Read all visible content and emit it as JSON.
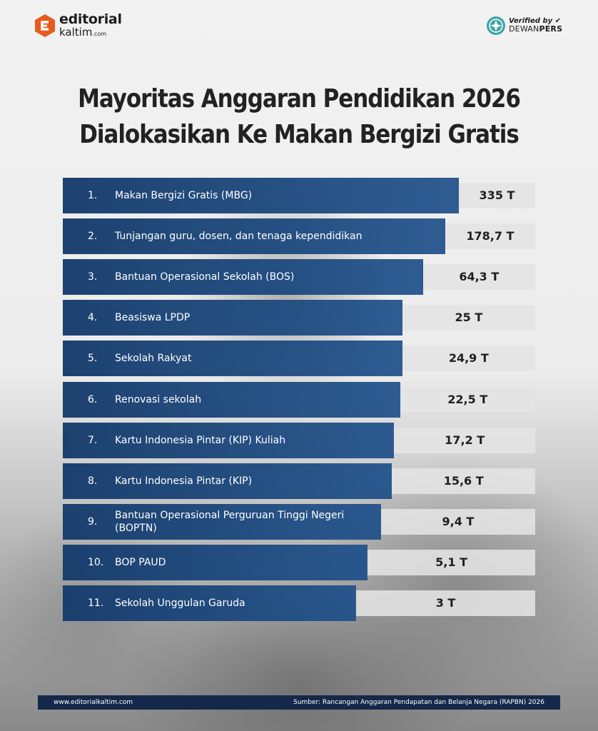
{
  "brand": {
    "logo_line1": "editorial",
    "logo_line2": "kaltim",
    "logo_suffix": ".com",
    "verified_by": "Verified by",
    "verifier_a": "DEWAN",
    "verifier_b": "PERS",
    "accent": "#e85a1e"
  },
  "title_line1": "Mayoritas Anggaran Pendidikan 2026",
  "title_line2": "Dialokasikan Ke Makan Bergizi Gratis",
  "chart_data": {
    "type": "bar",
    "orientation": "horizontal",
    "title": "Mayoritas Anggaran Pendidikan 2026 Dialokasikan Ke Makan Bergizi Gratis",
    "ranks": [
      "1.",
      "2.",
      "3.",
      "4.",
      "5.",
      "6.",
      "7.",
      "8.",
      "9.",
      "10.",
      "11."
    ],
    "categories": [
      "Makan Bergizi Gratis (MBG)",
      "Tunjangan guru, dosen, dan tenaga kependidikan",
      "Bantuan Operasional Sekolah (BOS)",
      "Beasiswa LPDP",
      "Sekolah Rakyat",
      "Renovasi sekolah",
      "Kartu Indonesia Pintar (KIP) Kuliah",
      "Kartu Indonesia Pintar (KIP)",
      "Bantuan Operasional Perguruan Tinggi Negeri (BOPTN)",
      "BOP PAUD",
      "Sekolah Unggulan Garuda"
    ],
    "values": [
      335,
      178.7,
      64.3,
      25,
      24.9,
      22.5,
      17.2,
      15.6,
      9.4,
      5.1,
      3
    ],
    "value_labels": [
      "335 T",
      "178,7 T",
      "64,3 T",
      "25 T",
      "24,9 T",
      "22,5 T",
      "17,2 T",
      "15,6 T",
      "9,4 T",
      "5,1 T",
      "3 T"
    ],
    "bar_color": "#1b4577"
  },
  "footer": {
    "website": "www.editorialkaltim.com",
    "source": "Sumber: Rancangan Anggaran Pendapatan dan Belanja Negara (RAPBN) 2026"
  }
}
